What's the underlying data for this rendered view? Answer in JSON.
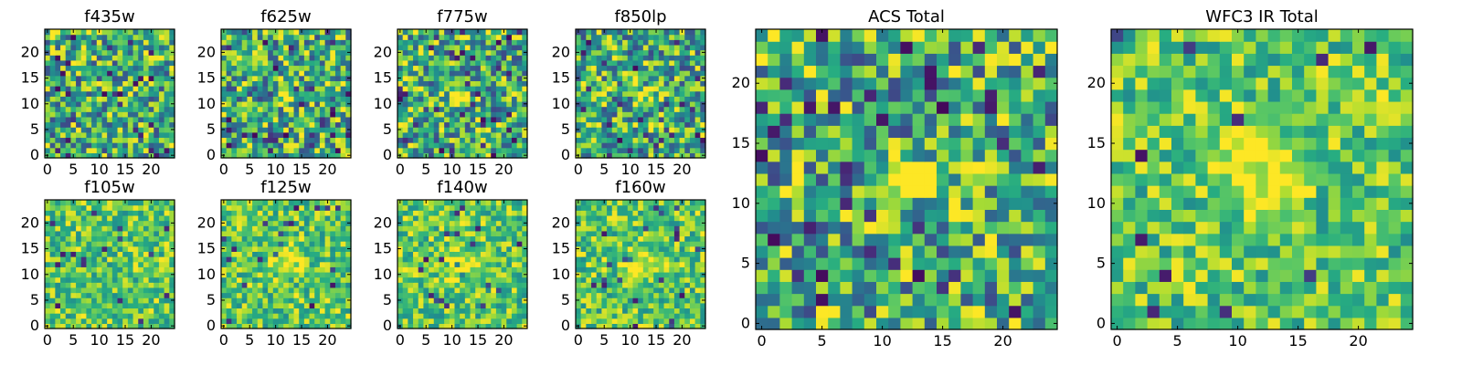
{
  "chart_data": [
    {
      "type": "heatmap",
      "title": "f435w",
      "xlim": [
        0,
        24
      ],
      "ylim": [
        0,
        24
      ],
      "xticks": [
        "0",
        "5",
        "10",
        "15",
        "20"
      ],
      "yticks": [
        "0",
        "5",
        "10",
        "15",
        "20"
      ],
      "peak": null,
      "colormap": "viridis"
    },
    {
      "type": "heatmap",
      "title": "f625w",
      "xlim": [
        0,
        24
      ],
      "ylim": [
        0,
        24
      ],
      "xticks": [
        "0",
        "5",
        "10",
        "15",
        "20"
      ],
      "yticks": [
        "0",
        "5",
        "10",
        "15",
        "20"
      ],
      "peak": [
        12,
        12
      ],
      "colormap": "viridis"
    },
    {
      "type": "heatmap",
      "title": "f775w",
      "xlim": [
        0,
        24
      ],
      "ylim": [
        0,
        24
      ],
      "xticks": [
        "0",
        "5",
        "10",
        "15",
        "20"
      ],
      "yticks": [
        "0",
        "5",
        "10",
        "15",
        "20"
      ],
      "peak": [
        12,
        12
      ],
      "colormap": "viridis"
    },
    {
      "type": "heatmap",
      "title": "f850lp",
      "xlim": [
        0,
        24
      ],
      "ylim": [
        0,
        24
      ],
      "xticks": [
        "0",
        "5",
        "10",
        "15",
        "20"
      ],
      "yticks": [
        "0",
        "5",
        "10",
        "15",
        "20"
      ],
      "peak": [
        13,
        12
      ],
      "colormap": "viridis"
    },
    {
      "type": "heatmap",
      "title": "f105w",
      "xlim": [
        0,
        24
      ],
      "ylim": [
        0,
        24
      ],
      "xticks": [
        "0",
        "5",
        "10",
        "15",
        "20"
      ],
      "yticks": [
        "0",
        "5",
        "10",
        "15",
        "20"
      ],
      "peak": null,
      "colormap": "viridis"
    },
    {
      "type": "heatmap",
      "title": "f125w",
      "xlim": [
        0,
        24
      ],
      "ylim": [
        0,
        24
      ],
      "xticks": [
        "0",
        "5",
        "10",
        "15",
        "20"
      ],
      "yticks": [
        "0",
        "5",
        "10",
        "15",
        "20"
      ],
      "peak": [
        12,
        13
      ],
      "colormap": "viridis"
    },
    {
      "type": "heatmap",
      "title": "f140w",
      "xlim": [
        0,
        24
      ],
      "ylim": [
        0,
        24
      ],
      "xticks": [
        "0",
        "5",
        "10",
        "15",
        "20"
      ],
      "yticks": [
        "0",
        "5",
        "10",
        "15",
        "20"
      ],
      "peak": [
        12,
        12
      ],
      "colormap": "viridis"
    },
    {
      "type": "heatmap",
      "title": "f160w",
      "xlim": [
        0,
        24
      ],
      "ylim": [
        0,
        24
      ],
      "xticks": [
        "0",
        "5",
        "10",
        "15",
        "20"
      ],
      "yticks": [
        "0",
        "5",
        "10",
        "15",
        "20"
      ],
      "peak": [
        12,
        12
      ],
      "colormap": "viridis"
    },
    {
      "type": "heatmap",
      "title": "ACS Total",
      "xlim": [
        0,
        24
      ],
      "ylim": [
        0,
        24
      ],
      "xticks": [
        "0",
        "5",
        "10",
        "15",
        "20"
      ],
      "yticks": [
        "0",
        "5",
        "10",
        "15",
        "20"
      ],
      "peak": [
        12,
        12
      ],
      "colormap": "viridis"
    },
    {
      "type": "heatmap",
      "title": "WFC3 IR Total",
      "xlim": [
        0,
        24
      ],
      "ylim": [
        0,
        24
      ],
      "xticks": [
        "0",
        "5",
        "10",
        "15",
        "20"
      ],
      "yticks": [
        "0",
        "5",
        "10",
        "15",
        "20"
      ],
      "peak": [
        12,
        13
      ],
      "colormap": "viridis"
    }
  ]
}
